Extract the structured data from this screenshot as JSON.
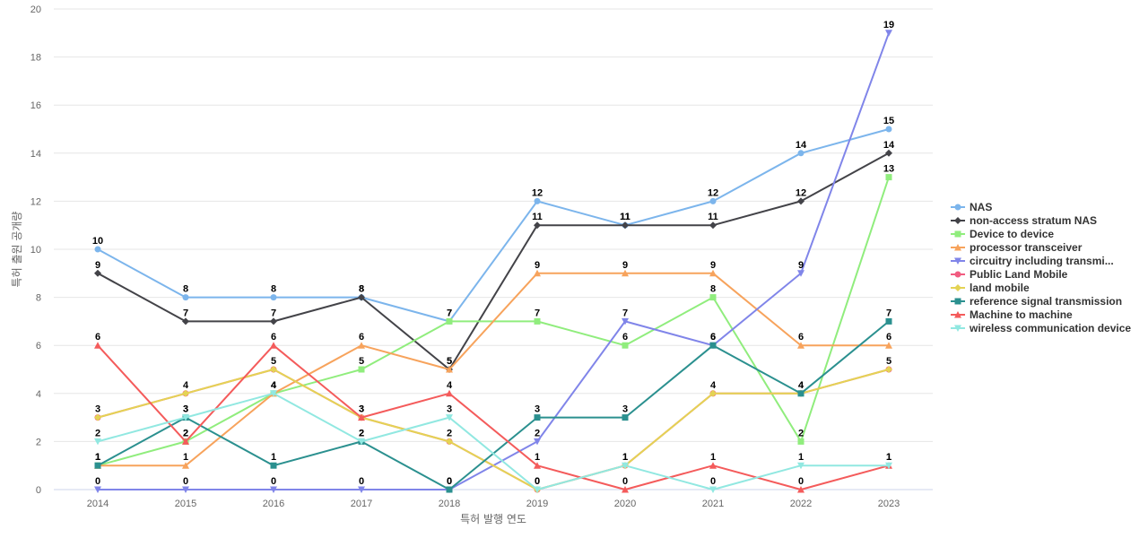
{
  "chart_data": {
    "type": "line",
    "title": "",
    "xlabel": "특허 발행 연도",
    "ylabel": "특허 출원 공개량",
    "ylim": [
      0,
      20
    ],
    "yticks": [
      0,
      2,
      4,
      6,
      8,
      10,
      12,
      14,
      16,
      18,
      20
    ],
    "grid": true,
    "legend_position": "right",
    "categories": [
      "2014",
      "2015",
      "2016",
      "2017",
      "2018",
      "2019",
      "2020",
      "2021",
      "2022",
      "2023"
    ],
    "series": [
      {
        "name": "NAS",
        "legend_label": "NAS",
        "color": "#7cb5ec",
        "marker": "circle",
        "values": [
          10,
          8,
          8,
          8,
          7,
          12,
          11,
          12,
          14,
          15
        ]
      },
      {
        "name": "non-access stratum NAS",
        "legend_label": "non-access stratum NAS",
        "color": "#434348",
        "marker": "diamond",
        "values": [
          9,
          7,
          7,
          8,
          5,
          11,
          11,
          11,
          12,
          14
        ]
      },
      {
        "name": "Device to device",
        "legend_label": "Device to device",
        "color": "#90ed7d",
        "marker": "square",
        "values": [
          1,
          2,
          4,
          5,
          7,
          7,
          6,
          8,
          2,
          13
        ]
      },
      {
        "name": "processor transceiver",
        "legend_label": "processor transceiver",
        "color": "#f7a35c",
        "marker": "triangle",
        "values": [
          1,
          1,
          4,
          6,
          5,
          9,
          9,
          9,
          6,
          6
        ]
      },
      {
        "name": "circuitry including transmitter",
        "legend_label": "circuitry including transmi...",
        "color": "#8085e9",
        "marker": "triangle-down",
        "values": [
          0,
          0,
          0,
          0,
          0,
          2,
          7,
          6,
          9,
          19
        ]
      },
      {
        "name": "Public Land Mobile",
        "legend_label": "Public Land Mobile",
        "color": "#f15c80",
        "marker": "circle",
        "values": [
          3,
          4,
          5,
          3,
          2,
          0,
          1,
          4,
          4,
          5
        ]
      },
      {
        "name": "land mobile",
        "legend_label": "land mobile",
        "color": "#e4d354",
        "marker": "diamond",
        "values": [
          3,
          4,
          5,
          3,
          2,
          0,
          1,
          4,
          4,
          5
        ]
      },
      {
        "name": "reference signal transmission",
        "legend_label": "reference signal transmission",
        "color": "#2b908f",
        "marker": "square",
        "values": [
          1,
          3,
          1,
          2,
          0,
          3,
          3,
          6,
          4,
          7
        ]
      },
      {
        "name": "Machine to machine",
        "legend_label": "Machine to machine",
        "color": "#f45b5b",
        "marker": "triangle",
        "values": [
          6,
          2,
          6,
          3,
          4,
          1,
          0,
          1,
          0,
          1
        ]
      },
      {
        "name": "wireless communication device",
        "legend_label": "wireless communication device",
        "color": "#91e8e1",
        "marker": "triangle-down",
        "values": [
          2,
          3,
          4,
          2,
          3,
          0,
          1,
          0,
          1,
          1
        ]
      }
    ],
    "data_labels": [
      [
        {
          "t": "10"
        },
        {
          "t": "8"
        },
        {
          "t": "8"
        },
        {
          "t": "8"
        },
        {
          "t": "7"
        },
        {
          "t": "12"
        },
        {
          "t": "11"
        },
        {
          "t": "12"
        },
        {
          "t": "14"
        },
        {
          "t": "15"
        }
      ],
      [
        {
          "t": "9"
        },
        {
          "t": "7"
        },
        {
          "t": "7"
        },
        {
          "t": "8"
        },
        {
          "t": "5"
        },
        {
          "t": "11"
        },
        {
          "t": "11"
        },
        {
          "t": "11"
        },
        {
          "t": "12"
        },
        {
          "t": "14"
        }
      ],
      [
        {
          "t": "1"
        },
        {
          "t": "2"
        },
        {
          "t": "4"
        },
        {
          "t": "5"
        },
        {
          "t": "7"
        },
        {
          "t": "7"
        },
        {
          "t": "6"
        },
        {
          "t": "8"
        },
        {
          "t": "2"
        },
        {
          "t": "13"
        }
      ],
      [
        {
          "t": "1"
        },
        {
          "t": "1"
        },
        {
          "t": "4"
        },
        {
          "t": "6"
        },
        {
          "t": "5"
        },
        {
          "t": "9"
        },
        {
          "t": "9"
        },
        {
          "t": "9"
        },
        {
          "t": "6"
        },
        {
          "t": "6"
        }
      ],
      [
        {
          "t": "0"
        },
        {
          "t": "0"
        },
        {
          "t": "0"
        },
        {
          "t": "0"
        },
        {
          "t": "0"
        },
        {
          "t": "2"
        },
        {
          "t": "7"
        },
        {
          "t": "6"
        },
        {
          "t": "9"
        },
        {
          "t": "19"
        }
      ],
      [
        {
          "t": "3"
        },
        {
          "t": "4"
        },
        {
          "t": "5"
        },
        {
          "t": "3"
        },
        {
          "t": "2"
        },
        {
          "t": "0"
        },
        {
          "t": "1"
        },
        {
          "t": "4"
        },
        {
          "t": "4"
        },
        {
          "t": "5"
        }
      ],
      [
        null,
        null,
        null,
        null,
        null,
        null,
        null,
        null,
        null,
        null
      ],
      [
        {
          "t": "1"
        },
        {
          "t": "3"
        },
        {
          "t": "1"
        },
        {
          "t": "2"
        },
        {
          "t": "0"
        },
        {
          "t": "3"
        },
        {
          "t": "3"
        },
        {
          "t": "6"
        },
        {
          "t": "4"
        },
        {
          "t": "7"
        }
      ],
      [
        {
          "t": "6"
        },
        {
          "t": "2"
        },
        {
          "t": "6"
        },
        {
          "t": "3"
        },
        {
          "t": "4"
        },
        {
          "t": "1"
        },
        {
          "t": "0"
        },
        {
          "t": "1"
        },
        {
          "t": "0"
        },
        {
          "t": "1"
        }
      ],
      [
        {
          "t": "2"
        },
        {
          "t": "3"
        },
        {
          "t": "4"
        },
        {
          "t": "2"
        },
        {
          "t": "3"
        },
        {
          "t": "0"
        },
        {
          "t": "1"
        },
        {
          "t": "0"
        },
        {
          "t": "1"
        },
        {
          "t": "1"
        }
      ]
    ]
  }
}
